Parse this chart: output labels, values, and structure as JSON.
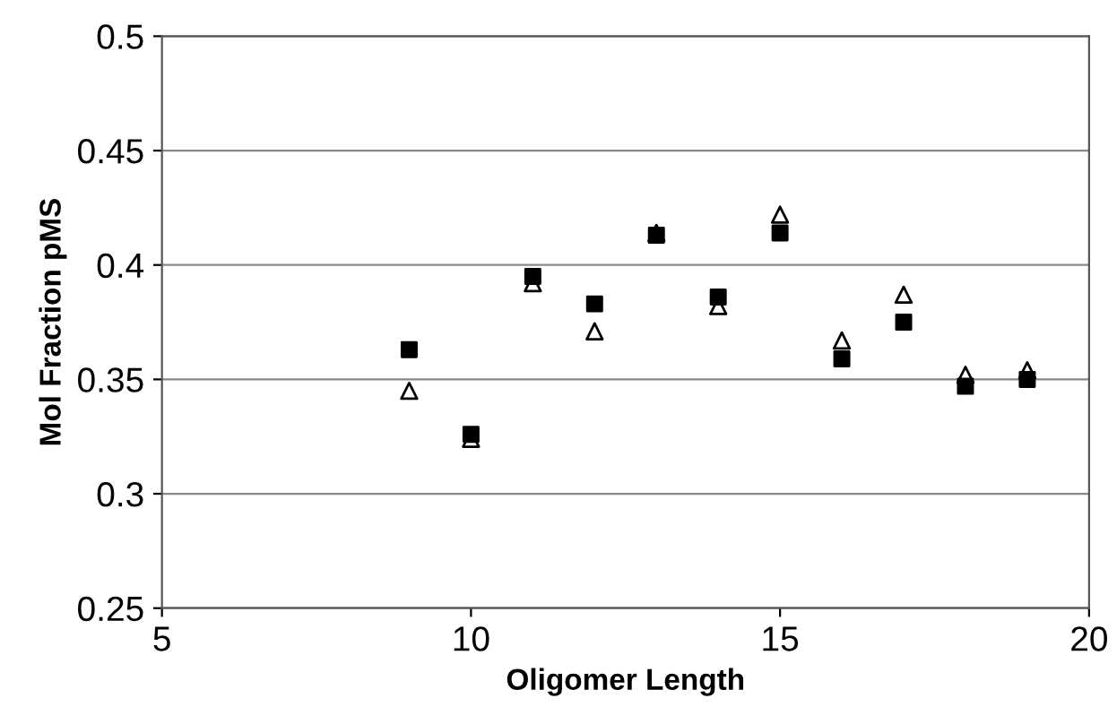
{
  "chart_data": {
    "type": "scatter",
    "xlabel": "Oligomer Length",
    "ylabel": "Mol Fraction pMS",
    "xlim": [
      5,
      20
    ],
    "xticks": [
      5,
      10,
      15,
      20
    ],
    "ylim": [
      0.25,
      0.5
    ],
    "yticks": [
      0.25,
      0.3,
      0.35,
      0.4,
      0.45,
      0.5
    ],
    "grid": "y",
    "series": [
      {
        "color": "#000000",
        "marker": "square",
        "x": [
          9,
          10,
          11,
          12,
          13,
          14,
          15,
          16,
          17,
          18,
          19
        ],
        "values": [
          0.363,
          0.326,
          0.395,
          0.383,
          0.413,
          0.386,
          0.414,
          0.359,
          0.375,
          0.347,
          0.35
        ]
      },
      {
        "color": "#000000",
        "marker": "triangle",
        "x": [
          9,
          10,
          11,
          12,
          13,
          14,
          15,
          16,
          17,
          18,
          19
        ],
        "values": [
          0.345,
          0.324,
          0.392,
          0.371,
          0.414,
          0.382,
          0.422,
          0.367,
          0.387,
          0.352,
          0.354
        ]
      }
    ]
  }
}
